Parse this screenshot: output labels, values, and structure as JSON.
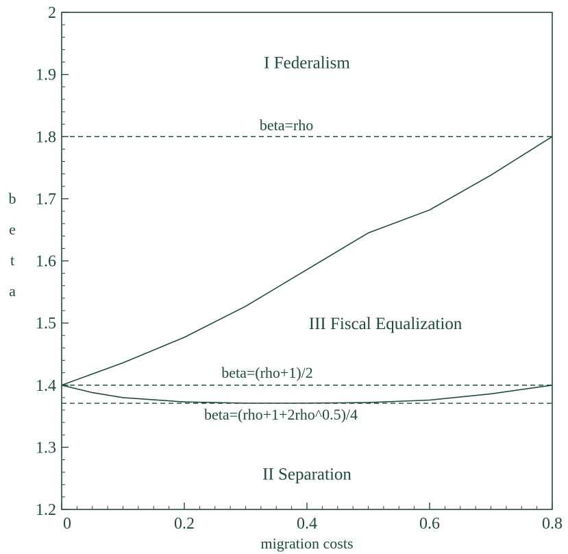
{
  "chart_data": {
    "type": "line",
    "title": "",
    "xlabel": "migration costs",
    "ylabel": "beta",
    "xlim": [
      0,
      0.8
    ],
    "ylim": [
      1.2,
      2.0
    ],
    "xticks": [
      0,
      0.2,
      0.4,
      0.6,
      0.8
    ],
    "xtick_labels": [
      "0",
      "0.2",
      "0.4",
      "0.6",
      "0.8"
    ],
    "yticks": [
      1.2,
      1.3,
      1.4,
      1.5,
      1.6,
      1.7,
      1.8,
      1.9,
      2.0
    ],
    "ytick_labels": [
      "1.2",
      "1.3",
      "1.4",
      "1.5",
      "1.6",
      "1.7",
      "1.8",
      "1.9",
      "2"
    ],
    "grid": false,
    "legend": "none",
    "color": "#1f4b3e",
    "reference_lines": [
      {
        "label": "beta=rho",
        "y": 1.8,
        "style": "dashed"
      },
      {
        "label": "beta=(rho+1)/2",
        "y": 1.4,
        "style": "dashed"
      },
      {
        "label": "beta=(rho+1+2rho^0.5)/4",
        "y": 1.3708,
        "style": "dashed"
      }
    ],
    "series": [
      {
        "style": "solid",
        "x": [
          0,
          0.1,
          0.2,
          0.3,
          0.4,
          0.5,
          0.6,
          0.7,
          0.8
        ],
        "y": [
          1.4,
          1.436,
          1.477,
          1.527,
          1.586,
          1.645,
          1.682,
          1.738,
          1.8
        ]
      },
      {
        "style": "solid",
        "x": [
          0,
          0.05,
          0.1,
          0.2,
          0.3,
          0.4,
          0.5,
          0.6,
          0.7,
          0.8
        ],
        "y": [
          1.4,
          1.388,
          1.38,
          1.373,
          1.371,
          1.371,
          1.372,
          1.376,
          1.386,
          1.4
        ]
      }
    ],
    "annotations": [
      {
        "text": "I Federalism",
        "x": 0.4,
        "y": 1.91
      },
      {
        "text": "III Fiscal Equalization",
        "x": 0.528,
        "y": 1.49
      },
      {
        "text": "II Separation",
        "x": 0.4,
        "y": 1.248
      }
    ]
  }
}
